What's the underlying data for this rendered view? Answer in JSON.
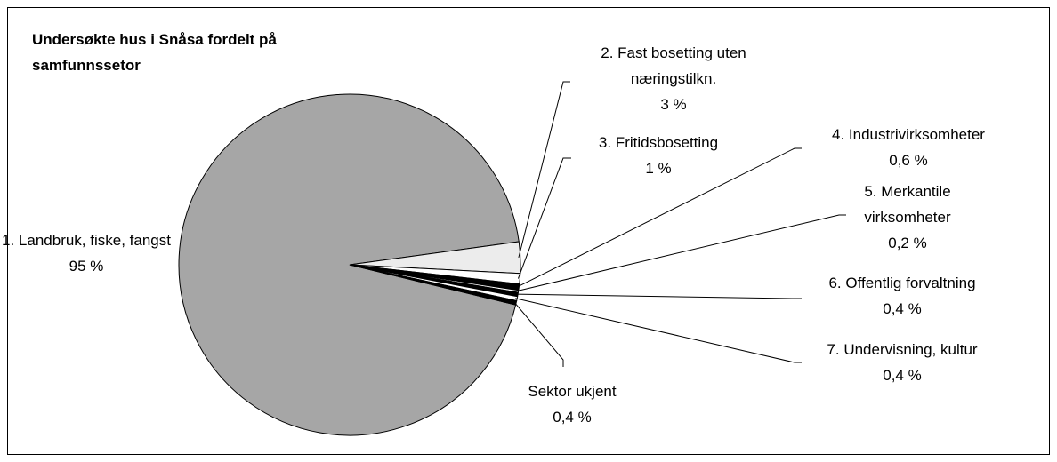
{
  "chart_data": {
    "type": "pie",
    "title": "Undersøkte hus i Snåsa fordelt på samfunnssetor",
    "categories": [
      "1. Landbruk, fiske, fangst",
      "2. Fast bosetting uten næringstilkn.",
      "3. Fritidsbosetting",
      "4. Industrivirksomheter",
      "5. Merkantile virksomheter",
      "6. Offentlig forvaltning",
      "7. Undervisning, kultur",
      "Sektor ukjent"
    ],
    "values": [
      95,
      3,
      1,
      0.6,
      0.2,
      0.4,
      0.4,
      0.4
    ],
    "value_labels": [
      "95 %",
      "3 %",
      "1 %",
      "0,6 %",
      "0,2 %",
      "0,4 %",
      "0,4 %",
      "0,4 %"
    ],
    "colors": [
      "#a6a6a6",
      "#ececec",
      "#ffffff",
      "#000000",
      "#ffffff",
      "#000000",
      "#ffffff",
      "#000000"
    ]
  }
}
